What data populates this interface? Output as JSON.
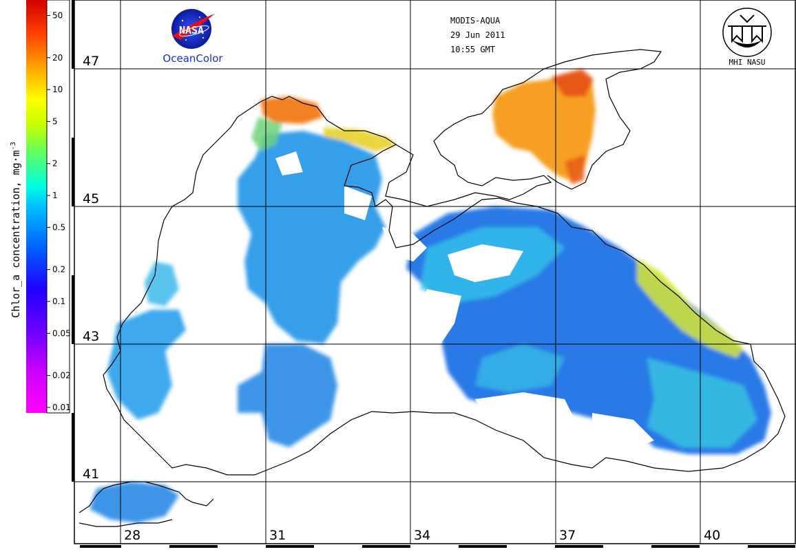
{
  "colorbar": {
    "label": "Chlor_a concentration, mg·m",
    "label_superscript": "-3",
    "ticks": [
      "50",
      "20",
      "10",
      "5",
      "2",
      "1",
      "0.5",
      "0.2",
      "0.1",
      "0.05",
      "0.02",
      "0.01"
    ],
    "tick_values": [
      50,
      20,
      10,
      5,
      2,
      1,
      0.5,
      0.2,
      0.1,
      0.05,
      0.02,
      0.01
    ],
    "scale": "log",
    "range": [
      0.01,
      64
    ],
    "colors": [
      "#ff00ff",
      "#9b00ff",
      "#2a00ff",
      "#0050ff",
      "#00c8ff",
      "#00ffc0",
      "#a0ff30",
      "#ffff00",
      "#ffb000",
      "#ff5000",
      "#d80000"
    ]
  },
  "header": {
    "sensor": "MODIS-AQUA",
    "date": "29 Jun 2011",
    "time": "10:55 GMT"
  },
  "logos": {
    "nasa_text": "NASA",
    "oceancolor": "OceanColor",
    "mhi_text": "MHI NASU"
  },
  "grid": {
    "latitudes": [
      "47",
      "45",
      "43",
      "41"
    ],
    "longitudes": [
      "28",
      "31",
      "34",
      "37",
      "40"
    ]
  },
  "map_colors": {
    "land": "#ffffff",
    "coast": "#000000",
    "low": "#1e73e6",
    "mid": "#28b4f0",
    "cyan": "#3cd2e6",
    "green": "#78dc78",
    "yellow": "#e6e628",
    "orange": "#f5a018",
    "red": "#e63c14"
  }
}
